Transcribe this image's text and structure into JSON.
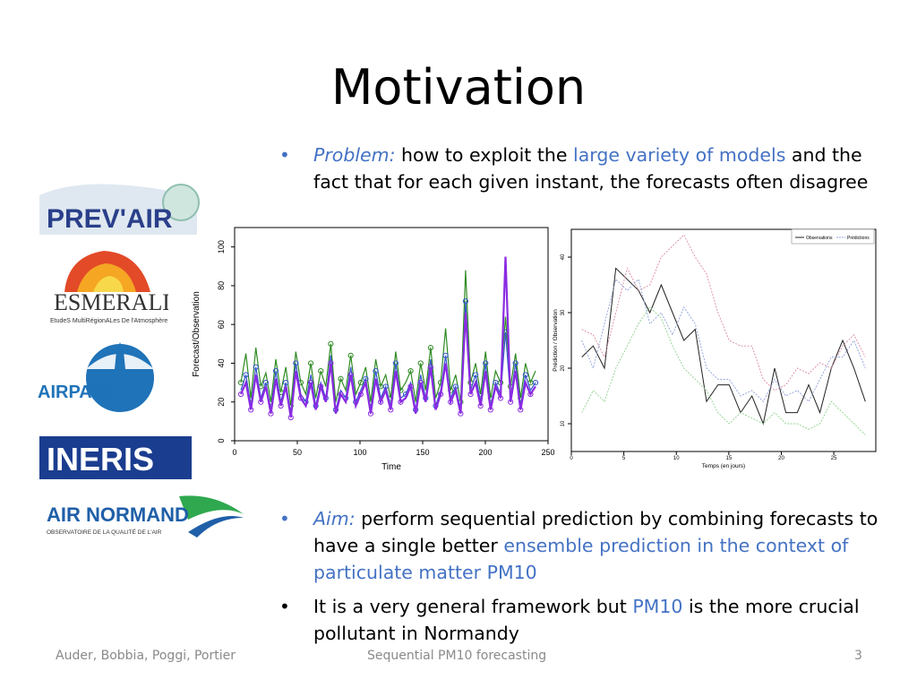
{
  "slide": {
    "title": "Motivation",
    "bullet1": {
      "label": "Problem:",
      "text_a": " how to exploit the ",
      "highlight": "large variety of models",
      "text_b": " and the fact that for each given instant, the forecasts often disagree"
    },
    "bullet2": {
      "label": "Aim:",
      "text_a": " perform sequential prediction by combining forecasts to have a single better ",
      "highlight": "ensemble prediction in the context of particulate matter PM10"
    },
    "bullet3": {
      "text_a": "It is a very general framework but ",
      "highlight": "PM10",
      "text_b": " is the more crucial pollutant in Normandy"
    }
  },
  "logos": {
    "prevair": "PREV'AIR",
    "esmeralda": "ESMERALDA",
    "esmeralda_sub": "EtudeS MultiRégionALes De l'Atmosphère",
    "airparif": "AIRPARIF",
    "ineris": "INERIS",
    "airnormand": "AIR NORMAND",
    "airnormand_sub": "OBSERVATOIRE DE LA QUALITÉ DE L'AIR"
  },
  "footer": {
    "authors": "Auder, Bobbia, Poggi, Portier",
    "talk": "Sequential PM10 forecasting",
    "page": "3"
  },
  "colors": {
    "accent": "#4472c4",
    "text": "#000000",
    "footer": "#8a8a8a"
  },
  "chart_data": [
    {
      "type": "line",
      "xlabel": "Time",
      "ylabel": "Forecast/Observation",
      "xlim": [
        0,
        250
      ],
      "ylim": [
        0,
        110
      ],
      "xticks": [
        0,
        50,
        100,
        150,
        200,
        250
      ],
      "yticks": [
        0,
        20,
        40,
        60,
        80,
        100
      ],
      "series": [
        {
          "color": "#2e8b22",
          "values": [
            30,
            45,
            22,
            48,
            28,
            35,
            20,
            42,
            25,
            38,
            18,
            46,
            30,
            24,
            40,
            22,
            36,
            28,
            50,
            20,
            32,
            26,
            44,
            24,
            30,
            38,
            20,
            42,
            28,
            34,
            22,
            46,
            26,
            30,
            36,
            20,
            40,
            26,
            48,
            22,
            30,
            58,
            26,
            34,
            20,
            88,
            30,
            40,
            24,
            46,
            22,
            36,
            30,
            64,
            28,
            45,
            22,
            40,
            30,
            36
          ]
        },
        {
          "color": "#3355cc",
          "values": [
            26,
            34,
            18,
            38,
            22,
            30,
            16,
            36,
            20,
            30,
            14,
            40,
            24,
            20,
            34,
            18,
            30,
            22,
            44,
            16,
            26,
            22,
            38,
            20,
            26,
            32,
            16,
            36,
            22,
            28,
            18,
            40,
            22,
            24,
            30,
            16,
            34,
            22,
            42,
            18,
            26,
            44,
            22,
            28,
            16,
            72,
            26,
            34,
            20,
            40,
            18,
            30,
            24,
            56,
            22,
            40,
            18,
            34,
            26,
            30
          ]
        },
        {
          "color": "#8a2be2",
          "values": [
            24,
            30,
            16,
            34,
            20,
            28,
            14,
            32,
            18,
            28,
            12,
            36,
            22,
            18,
            30,
            16,
            28,
            20,
            40,
            14,
            24,
            20,
            34,
            18,
            24,
            30,
            14,
            32,
            20,
            26,
            16,
            36,
            20,
            22,
            28,
            14,
            30,
            20,
            38,
            16,
            24,
            40,
            20,
            26,
            14,
            66,
            24,
            30,
            18,
            36,
            16,
            28,
            22,
            95,
            20,
            36,
            16,
            30,
            24,
            28
          ]
        }
      ]
    },
    {
      "type": "line",
      "xlabel": "Temps (en jours)",
      "ylabel": "Prédiction / Observation",
      "xlim": [
        0,
        29
      ],
      "ylim": [
        5,
        45
      ],
      "xticks": [
        0,
        5,
        10,
        15,
        20,
        25
      ],
      "yticks": [
        10,
        20,
        30,
        40
      ],
      "legend": [
        "Observations",
        "Prédictions"
      ],
      "series": [
        {
          "color": "#222222",
          "values": [
            22,
            24,
            20,
            38,
            36,
            34,
            30,
            35,
            30,
            25,
            27,
            14,
            17,
            17,
            12,
            15,
            10,
            20,
            12,
            12,
            17,
            12,
            20,
            25,
            20,
            14
          ]
        },
        {
          "color": "#d98aa0",
          "values": [
            27,
            26,
            22,
            30,
            38,
            34,
            35,
            40,
            42,
            44,
            40,
            37,
            30,
            25,
            24,
            24,
            18,
            16,
            17,
            20,
            19,
            21,
            20,
            24,
            26,
            22
          ]
        },
        {
          "color": "#8ba0d8",
          "values": [
            25,
            20,
            28,
            36,
            34,
            36,
            28,
            30,
            26,
            31,
            28,
            20,
            18,
            18,
            15,
            16,
            14,
            18,
            15,
            16,
            14,
            18,
            22,
            22,
            25,
            20
          ]
        },
        {
          "color": "#8fd08f",
          "values": [
            12,
            16,
            14,
            20,
            24,
            28,
            31,
            29,
            24,
            20,
            18,
            16,
            12,
            10,
            12,
            11,
            10,
            12,
            10,
            10,
            9,
            10,
            14,
            12,
            10,
            8
          ]
        }
      ]
    }
  ]
}
